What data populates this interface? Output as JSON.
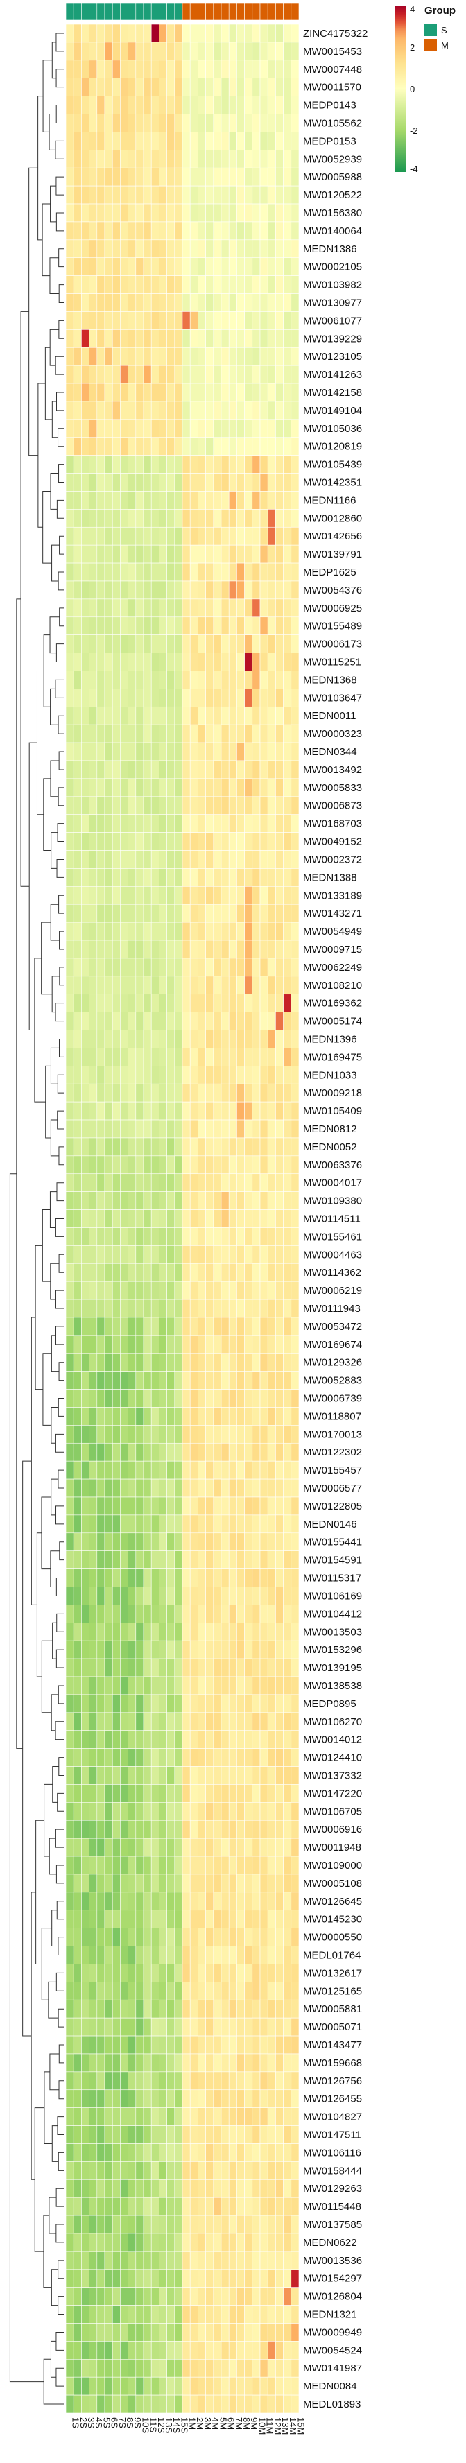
{
  "chart_data": {
    "type": "heatmap",
    "annotation_title": "Group",
    "groups": [
      {
        "name": "S",
        "color": "#1b9e77"
      },
      {
        "name": "M",
        "color": "#d95f02"
      }
    ],
    "columns": [
      "1S",
      "2S",
      "3S",
      "4S",
      "5S",
      "6S",
      "7S",
      "8S",
      "9S",
      "10S",
      "11S",
      "12S",
      "13S",
      "14S",
      "15S",
      "1M",
      "2M",
      "3M",
      "4M",
      "5M",
      "6M",
      "7M",
      "8M",
      "9M",
      "10M",
      "11M",
      "12M",
      "13M",
      "14M",
      "15M"
    ],
    "column_groups": [
      "S",
      "S",
      "S",
      "S",
      "S",
      "S",
      "S",
      "S",
      "S",
      "S",
      "S",
      "S",
      "S",
      "S",
      "S",
      "M",
      "M",
      "M",
      "M",
      "M",
      "M",
      "M",
      "M",
      "M",
      "M",
      "M",
      "M",
      "M",
      "M",
      "M"
    ],
    "rows": [
      "ZINC4175322",
      "MW0015453",
      "MW0007448",
      "MW0011570",
      "MEDP0143",
      "MW0105562",
      "MEDP0153",
      "MW0052939",
      "MW0005988",
      "MW0120522",
      "MW0156380",
      "MW0140064",
      "MEDN1386",
      "MW0002105",
      "MW0103982",
      "MW0130977",
      "MW0061077",
      "MW0139229",
      "MW0123105",
      "MW0141263",
      "MW0142158",
      "MW0149104",
      "MW0105036",
      "MW0120819",
      "MW0105439",
      "MW0142351",
      "MEDN1166",
      "MW0012860",
      "MW0142656",
      "MW0139791",
      "MEDP1625",
      "MW0054376",
      "MW0006925",
      "MW0155489",
      "MW0006173",
      "MW0115251",
      "MEDN1368",
      "MW0103647",
      "MEDN0011",
      "MW0000323",
      "MEDN0344",
      "MW0013492",
      "MW0005833",
      "MW0006873",
      "MW0168703",
      "MW0049152",
      "MW0002372",
      "MEDN1388",
      "MW0133189",
      "MW0143271",
      "MW0054949",
      "MW0009715",
      "MW0062249",
      "MW0108210",
      "MW0169362",
      "MW0005174",
      "MEDN1396",
      "MW0169475",
      "MEDN1033",
      "MW0009218",
      "MW0105409",
      "MEDN0812",
      "MEDN0052",
      "MW0063376",
      "MW0004017",
      "MW0109380",
      "MW0114511",
      "MW0155461",
      "MW0004463",
      "MW0114362",
      "MW0006219",
      "MW0111943",
      "MW0053472",
      "MW0169674",
      "MW0129326",
      "MW0052883",
      "MW0006739",
      "MW0118807",
      "MW0170013",
      "MW0122302",
      "MW0155457",
      "MW0006577",
      "MW0122805",
      "MEDN0146",
      "MW0155441",
      "MW0154591",
      "MW0115317",
      "MW0106169",
      "MW0104412",
      "MW0013503",
      "MW0153296",
      "MW0139195",
      "MW0138538",
      "MEDP0895",
      "MW0106270",
      "MW0014012",
      "MW0124410",
      "MW0137332",
      "MW0147220",
      "MW0106705",
      "MW0006916",
      "MW0011948",
      "MW0109000",
      "MW0005108",
      "MW0126645",
      "MW0145230",
      "MW0000550",
      "MEDL01764",
      "MW0132617",
      "MW0125165",
      "MW0005881",
      "MW0005071",
      "MW0143477",
      "MW0159668",
      "MW0126756",
      "MW0126455",
      "MW0104827",
      "MW0147511",
      "MW0106116",
      "MW0158444",
      "MW0129263",
      "MW0115448",
      "MW0137585",
      "MEDN0622",
      "MW0013536",
      "MW0154297",
      "MW0126804",
      "MEDN1321",
      "MW0009949",
      "MW0054524",
      "MW0141987",
      "MEDN0084",
      "MEDL01893"
    ],
    "color_scale": {
      "min": -4,
      "max": 4,
      "low": "#1a9850",
      "mid": "#ffffbf",
      "high": "#a50026"
    },
    "legend_ticks": [
      4,
      2,
      0,
      -2,
      -4
    ],
    "hotspots": [
      {
        "row": 0,
        "col": 11,
        "value": 4.5
      },
      {
        "row": 0,
        "col": 12,
        "value": 2.5
      },
      {
        "row": 0,
        "col": 14,
        "value": 1.8
      },
      {
        "row": 1,
        "col": 5,
        "value": 2.6
      },
      {
        "row": 1,
        "col": 8,
        "value": 2.2
      },
      {
        "row": 1,
        "col": 1,
        "value": 1.6
      },
      {
        "row": 2,
        "col": 6,
        "value": 2.4
      },
      {
        "row": 2,
        "col": 3,
        "value": 2.0
      },
      {
        "row": 3,
        "col": 2,
        "value": 2.0
      },
      {
        "row": 3,
        "col": 7,
        "value": 1.6
      },
      {
        "row": 4,
        "col": 4,
        "value": 1.8
      },
      {
        "row": 5,
        "col": 6,
        "value": 1.5
      },
      {
        "row": 16,
        "col": 15,
        "value": 3.0
      },
      {
        "row": 16,
        "col": 16,
        "value": 2.0
      },
      {
        "row": 17,
        "col": 2,
        "value": 3.5
      },
      {
        "row": 17,
        "col": 6,
        "value": 1.6
      },
      {
        "row": 18,
        "col": 3,
        "value": 2.4
      },
      {
        "row": 18,
        "col": 5,
        "value": 2.0
      },
      {
        "row": 18,
        "col": 1,
        "value": 1.6
      },
      {
        "row": 19,
        "col": 7,
        "value": 2.8
      },
      {
        "row": 19,
        "col": 10,
        "value": 2.6
      },
      {
        "row": 20,
        "col": 2,
        "value": 2.4
      },
      {
        "row": 20,
        "col": 4,
        "value": 1.6
      },
      {
        "row": 21,
        "col": 6,
        "value": 1.8
      },
      {
        "row": 22,
        "col": 3,
        "value": 2.2
      },
      {
        "row": 23,
        "col": 1,
        "value": 1.7
      },
      {
        "row": 24,
        "col": 24,
        "value": 2.4
      },
      {
        "row": 25,
        "col": 25,
        "value": 2.2
      },
      {
        "row": 26,
        "col": 21,
        "value": 2.5
      },
      {
        "row": 26,
        "col": 24,
        "value": 2.2
      },
      {
        "row": 27,
        "col": 26,
        "value": 3.0
      },
      {
        "row": 28,
        "col": 26,
        "value": 3.0
      },
      {
        "row": 29,
        "col": 25,
        "value": 2.0
      },
      {
        "row": 30,
        "col": 22,
        "value": 2.6
      },
      {
        "row": 31,
        "col": 21,
        "value": 2.8
      },
      {
        "row": 31,
        "col": 22,
        "value": 2.6
      },
      {
        "row": 32,
        "col": 24,
        "value": 3.0
      },
      {
        "row": 33,
        "col": 25,
        "value": 2.4
      },
      {
        "row": 34,
        "col": 23,
        "value": 2.2
      },
      {
        "row": 35,
        "col": 23,
        "value": 3.8
      },
      {
        "row": 35,
        "col": 24,
        "value": 2.4
      },
      {
        "row": 36,
        "col": 24,
        "value": 2.4
      },
      {
        "row": 37,
        "col": 23,
        "value": 3.0
      },
      {
        "row": 40,
        "col": 22,
        "value": 2.2
      },
      {
        "row": 42,
        "col": 23,
        "value": 2.0
      },
      {
        "row": 48,
        "col": 23,
        "value": 2.4
      },
      {
        "row": 49,
        "col": 23,
        "value": 2.2
      },
      {
        "row": 50,
        "col": 23,
        "value": 2.6
      },
      {
        "row": 51,
        "col": 23,
        "value": 2.4
      },
      {
        "row": 52,
        "col": 23,
        "value": 2.2
      },
      {
        "row": 53,
        "col": 23,
        "value": 2.8
      },
      {
        "row": 54,
        "col": 28,
        "value": 3.6
      },
      {
        "row": 55,
        "col": 27,
        "value": 3.0
      },
      {
        "row": 56,
        "col": 26,
        "value": 2.4
      },
      {
        "row": 57,
        "col": 28,
        "value": 2.2
      },
      {
        "row": 59,
        "col": 22,
        "value": 2.0
      },
      {
        "row": 60,
        "col": 22,
        "value": 2.6
      },
      {
        "row": 60,
        "col": 23,
        "value": 2.2
      },
      {
        "row": 61,
        "col": 22,
        "value": 2.0
      },
      {
        "row": 65,
        "col": 20,
        "value": 2.0
      },
      {
        "row": 66,
        "col": 20,
        "value": 1.8
      },
      {
        "row": 121,
        "col": 19,
        "value": 1.8
      },
      {
        "row": 125,
        "col": 29,
        "value": 3.6
      },
      {
        "row": 126,
        "col": 28,
        "value": 2.8
      },
      {
        "row": 128,
        "col": 29,
        "value": 2.6
      },
      {
        "row": 129,
        "col": 26,
        "value": 2.8
      },
      {
        "row": 130,
        "col": 25,
        "value": 1.8
      }
    ]
  }
}
